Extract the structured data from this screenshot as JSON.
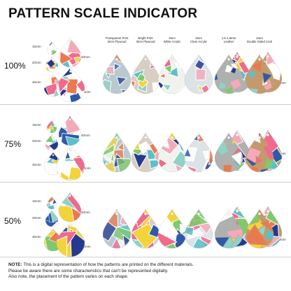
{
  "title": "PATTERN SCALE INDICATOR",
  "headers": [
    [
      "Transparent Print",
      "3mm Plywood"
    ],
    [
      "Bright Print",
      "3mm Plywood"
    ],
    [
      "3mm",
      "White Acrylic"
    ],
    [
      "3mm",
      "Clear Acrylic"
    ],
    [
      "1.6-1.8mm",
      "Leather"
    ],
    [
      "2mm",
      "Double Sided Cork"
    ]
  ],
  "rows": [
    {
      "percent": "100%",
      "sizes": [
        "15mm",
        "20mm",
        "30mm",
        "40mm",
        "50mm",
        "60mm"
      ]
    },
    {
      "percent": "75%",
      "sizes": [
        "15mm",
        "20mm",
        "30mm",
        "40mm",
        "50mm",
        "60mm"
      ]
    },
    {
      "percent": "50%",
      "sizes": [
        "15mm",
        "20mm",
        "30mm",
        "40mm",
        "50mm",
        "60mm"
      ]
    }
  ],
  "note": {
    "label": "NOTE:",
    "line1": " This is a digital representation of how the patterns are printed on the different materials.",
    "line2": "Please be aware there are some characteristics that can't be represented digitally.",
    "line3": "Also note, the placement of the pattern varies on each shape."
  },
  "colors": {
    "materials": [
      "#b9c9cf",
      "#d8cfc2",
      "#f1f1ee",
      "#dbe3e6",
      "#aeb1ad",
      "#c49a6c"
    ],
    "palette": [
      "#2f5aa8",
      "#ef6a8d",
      "#f2d43a",
      "#5bc0c7",
      "#8fd2c6",
      "#e97a4f",
      "#253a8f",
      "#f5a9b8",
      "#7fc96b",
      "#ffffff"
    ]
  }
}
